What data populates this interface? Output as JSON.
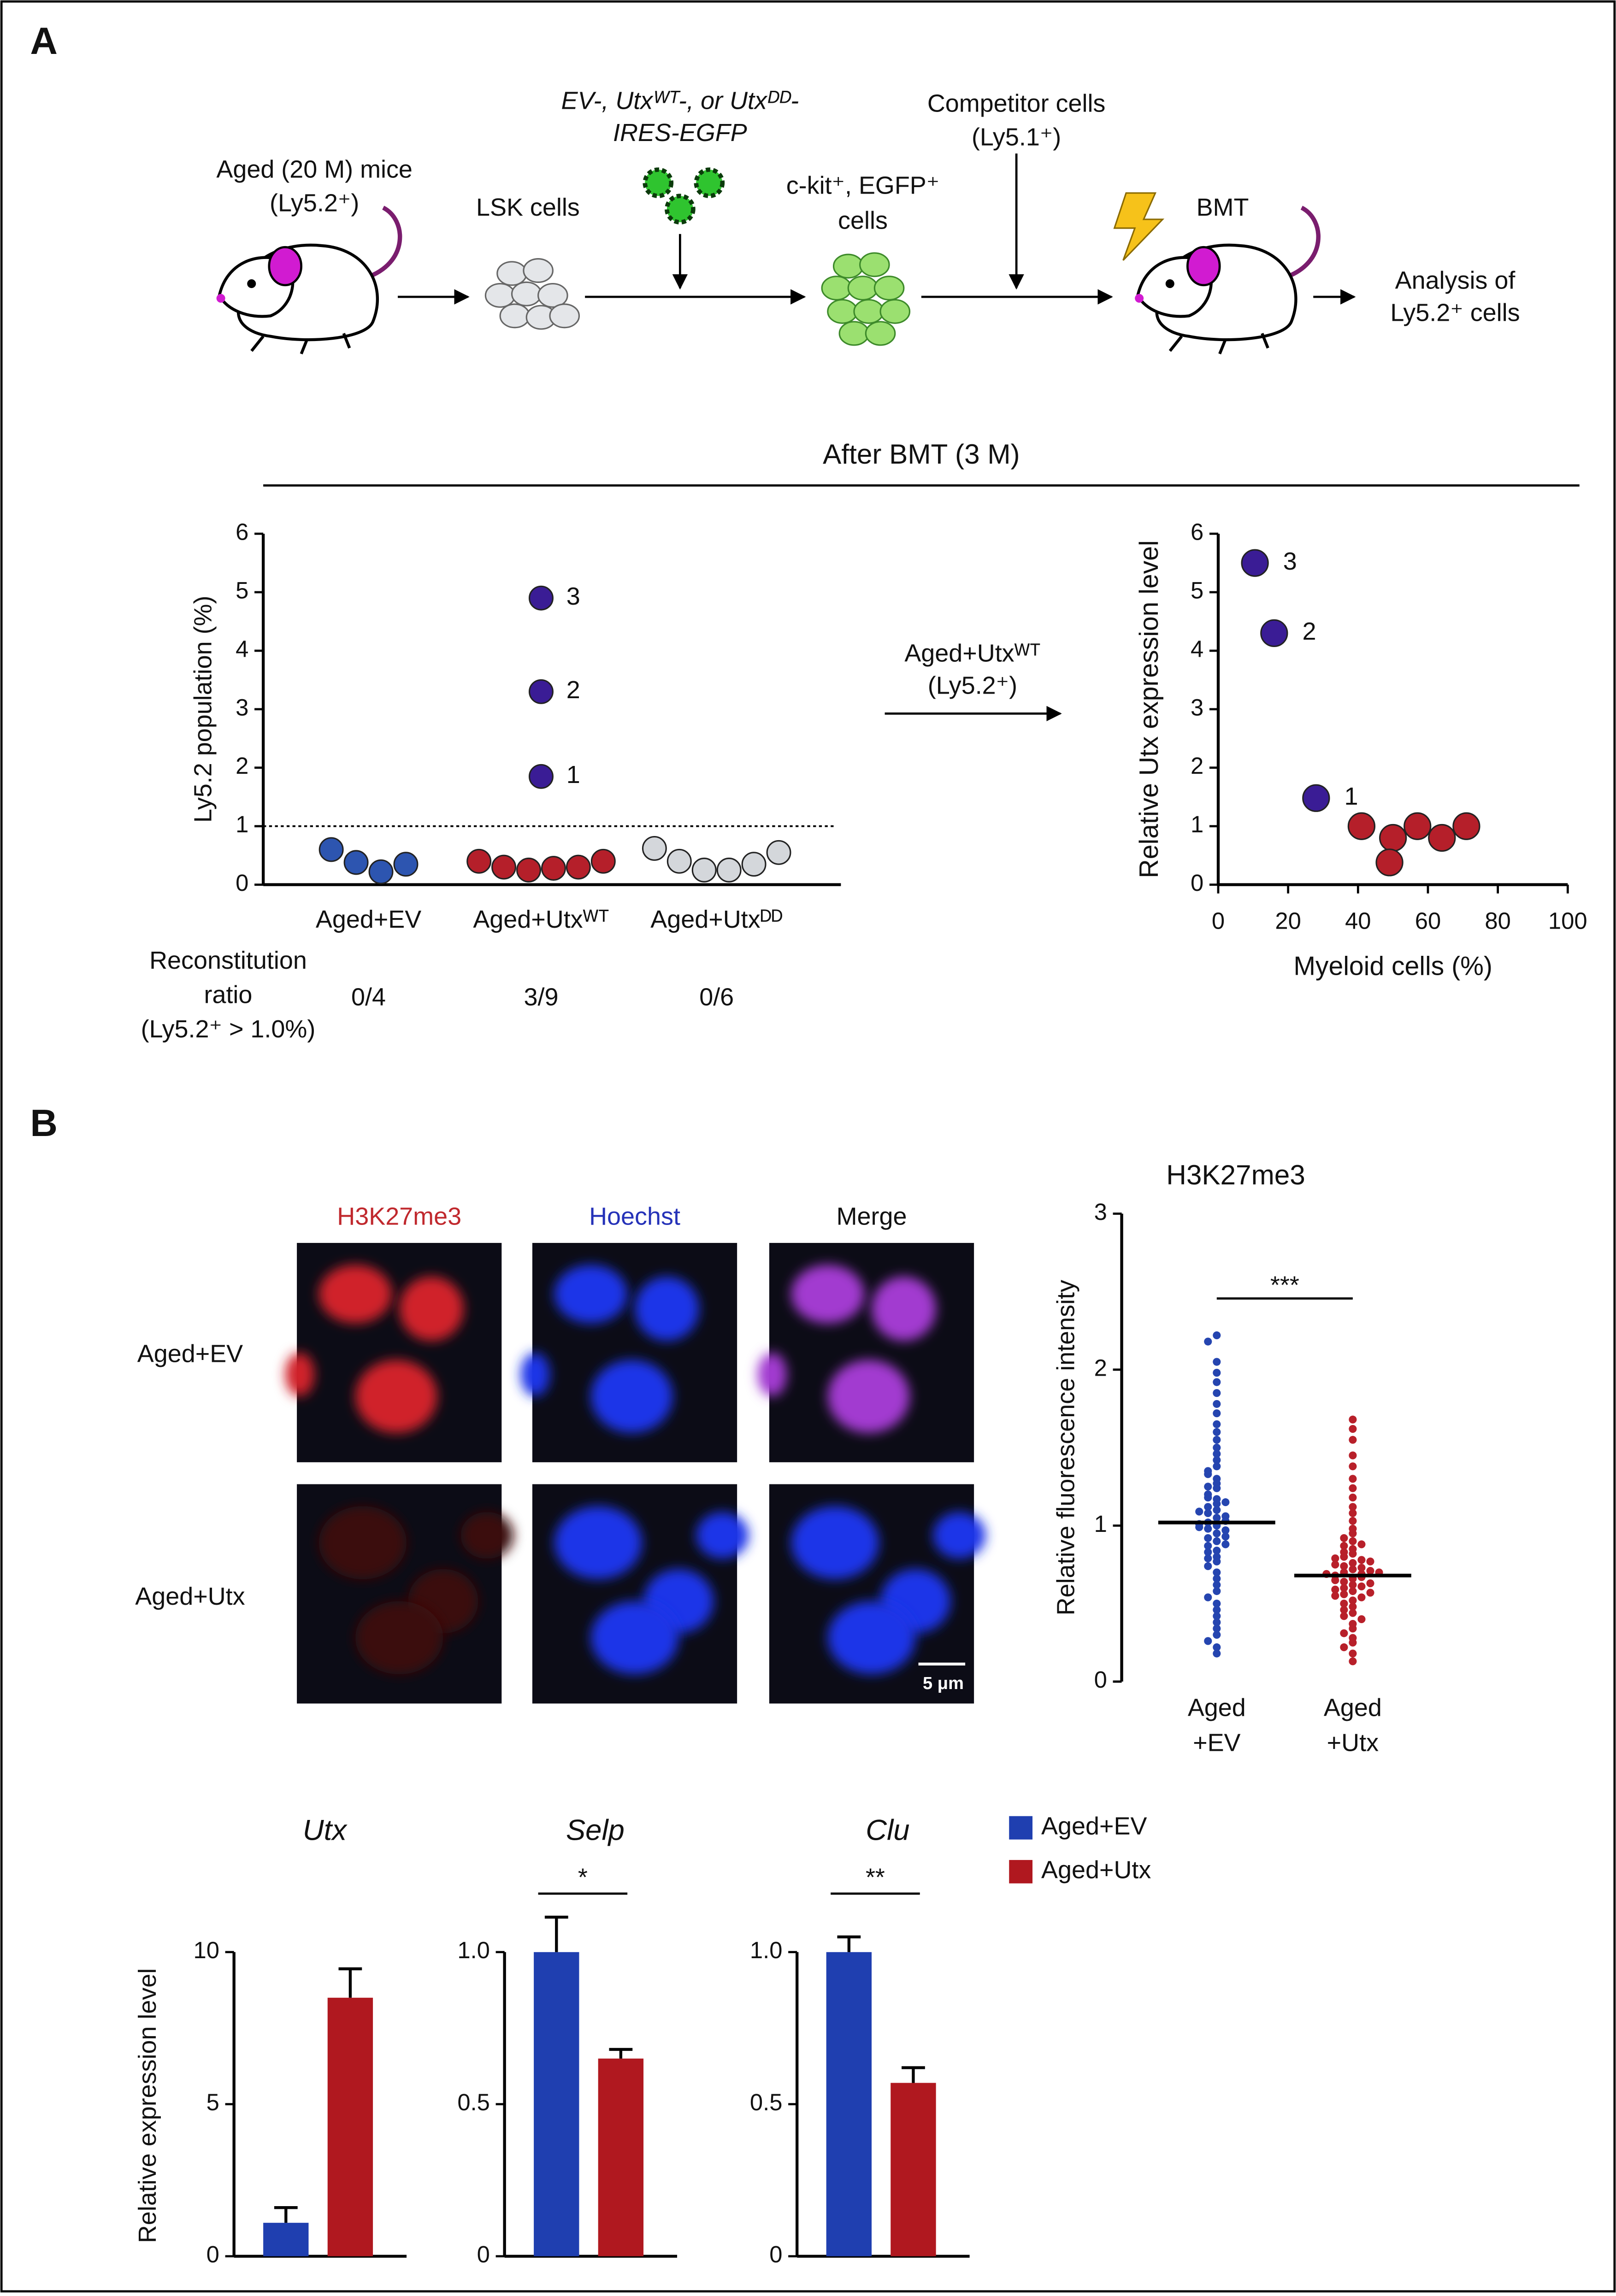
{
  "panel_a": {
    "label": "A",
    "schematic": {
      "donor": [
        "Aged (20 M) mice",
        "(Ly5.2⁺)"
      ],
      "lsk": "LSK cells",
      "vectors": [
        "EV-, Utxᵂᵀ-, or Utxᴰᴰ-",
        "IRES-EGFP"
      ],
      "sorted": [
        "c-kit⁺, EGFP⁺",
        "cells"
      ],
      "competitor": [
        "Competitor cells",
        "(Ly5.1⁺)"
      ],
      "bmt": "BMT",
      "analysis": [
        "Analysis of",
        "Ly5.2⁺ cells"
      ]
    },
    "after_bmt": "After BMT (3 M)",
    "reconstitution": {
      "title": [
        "Reconstitution",
        "ratio",
        "(Ly5.2⁺ > 1.0%)"
      ],
      "ratios": [
        "0/4",
        "3/9",
        "0/6"
      ]
    },
    "transfer": [
      "Aged+Utxᵂᵀ",
      "(Ly5.2⁺)"
    ]
  },
  "panel_b": {
    "label": "B",
    "image_columns": [
      "H3K27me3",
      "Hoechst",
      "Merge"
    ],
    "image_rows": [
      "Aged+EV",
      "Aged+Utx"
    ],
    "scale_bar": "5 μm",
    "legend": [
      {
        "name": "Aged+EV",
        "color": "#1f3fb0"
      },
      {
        "name": "Aged+Utx",
        "color": "#b0181f"
      }
    ]
  },
  "chart_data": [
    {
      "type": "strip",
      "ylabel": "Ly5.2 population (%)",
      "categories": [
        "Aged+EV",
        "Aged+Utxᵂᵀ",
        "Aged+Utxᴰᴰ"
      ],
      "colors": [
        "#2d55b0",
        "#b51f2a",
        "#d4d7db"
      ],
      "highlight_color": "#3a1c95",
      "values": [
        [
          0.6,
          0.38,
          0.22,
          0.35
        ],
        [
          0.4,
          0.3,
          0.25,
          0.28,
          0.3,
          0.4,
          1.85,
          3.3,
          4.9
        ],
        [
          0.62,
          0.4,
          0.25,
          0.25,
          0.35,
          0.55
        ]
      ],
      "point_labels": [
        [
          null,
          null,
          null,
          null
        ],
        [
          null,
          null,
          null,
          null,
          null,
          null,
          "1",
          "2",
          "3"
        ],
        [
          null,
          null,
          null,
          null,
          null,
          null
        ]
      ],
      "threshold": 1,
      "ylim": [
        0,
        6
      ],
      "yticks": [
        0,
        1,
        2,
        3,
        4,
        5,
        6
      ]
    },
    {
      "type": "scatter",
      "xlabel": "Myeloid cells (%)",
      "ylabel": "Relative Utx expression level",
      "x": [
        10.5,
        16,
        28,
        41,
        50,
        49,
        57,
        64,
        71
      ],
      "values": [
        5.5,
        4.3,
        1.48,
        1.0,
        0.8,
        0.38,
        1.0,
        0.8,
        1.0
      ],
      "point_labels": [
        "3",
        "2",
        "1",
        null,
        null,
        null,
        null,
        null,
        null
      ],
      "color": "#b51f2a",
      "highlight_color": "#3a1c95",
      "xlim": [
        0,
        100
      ],
      "ylim": [
        0,
        6
      ],
      "xticks": [
        0,
        20,
        40,
        60,
        80,
        100
      ],
      "yticks": [
        0,
        1,
        2,
        3,
        4,
        5,
        6
      ]
    },
    {
      "type": "dot",
      "title": "H3K27me3",
      "ylabel": "Relative fluorescence intensity",
      "categories": [
        [
          "Aged",
          "+EV"
        ],
        [
          "Aged",
          "+Utx"
        ]
      ],
      "colors": [
        "#2545b0",
        "#b8202a"
      ],
      "values": [
        [
          2.22,
          2.18,
          2.05,
          1.98,
          1.92,
          1.85,
          1.78,
          1.72,
          1.65,
          1.6,
          1.55,
          1.5,
          1.46,
          1.42,
          1.38,
          1.35,
          1.3,
          1.27,
          1.24,
          1.2,
          1.17,
          1.14,
          1.1,
          1.08,
          1.05,
          1.02,
          1.0,
          0.98,
          0.95,
          0.92,
          0.9,
          0.87,
          0.84,
          0.8,
          0.77,
          0.74,
          0.7,
          0.66,
          0.62,
          0.58,
          0.54,
          0.5,
          0.46,
          0.42,
          0.38,
          0.34,
          0.3,
          0.26,
          0.22,
          0.18,
          1.12,
          1.03,
          0.97,
          1.06,
          1.18,
          0.88,
          0.93,
          1.25,
          1.09,
          0.99,
          1.01,
          0.83,
          1.15,
          0.79,
          1.33
        ],
        [
          1.68,
          1.62,
          1.55,
          1.45,
          1.38,
          1.3,
          1.24,
          1.18,
          1.12,
          1.08,
          1.03,
          0.98,
          0.95,
          0.92,
          0.9,
          0.87,
          0.85,
          0.82,
          0.8,
          0.78,
          0.76,
          0.74,
          0.72,
          0.7,
          0.69,
          0.68,
          0.66,
          0.64,
          0.62,
          0.6,
          0.58,
          0.56,
          0.54,
          0.52,
          0.5,
          0.48,
          0.46,
          0.44,
          0.42,
          0.4,
          0.37,
          0.34,
          0.31,
          0.28,
          0.25,
          0.22,
          0.18,
          0.13,
          0.71,
          0.73,
          0.67,
          0.65,
          0.75,
          0.79,
          0.61,
          0.59,
          0.83,
          0.69,
          0.77,
          0.63,
          0.55,
          0.88,
          0.57,
          0.7
        ]
      ],
      "means": [
        1.02,
        0.68
      ],
      "significance": "***",
      "ylim": [
        0,
        3
      ],
      "yticks": [
        0,
        1,
        2,
        3
      ]
    },
    {
      "type": "bar",
      "title": "Utx",
      "ylabel": "Relative expression level",
      "values": [
        1.1,
        8.5
      ],
      "errors": [
        0.5,
        0.95
      ],
      "ylim": [
        0,
        10
      ],
      "yticks": [
        0,
        5,
        10
      ]
    },
    {
      "type": "bar",
      "title": "Selp",
      "significance": "*",
      "values": [
        1.0,
        0.65
      ],
      "errors": [
        0.115,
        0.03
      ],
      "ylim": [
        0,
        1
      ],
      "yticks": [
        0,
        0.5,
        {
          "value": 1,
          "label": "1.0"
        }
      ]
    },
    {
      "type": "bar",
      "title": "Clu",
      "significance": "**",
      "values": [
        1.0,
        0.57
      ],
      "errors": [
        0.05,
        0.05
      ],
      "ylim": [
        0,
        1
      ],
      "yticks": [
        0,
        0.5,
        {
          "value": 1,
          "label": "1.0"
        }
      ]
    }
  ]
}
